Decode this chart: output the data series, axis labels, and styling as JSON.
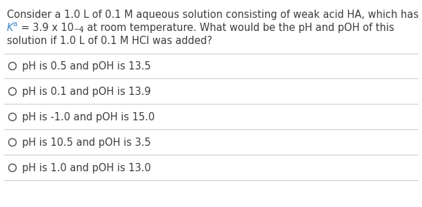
{
  "background_color": "#ffffff",
  "text_color": "#3d3d3d",
  "ka_color": "#3d85c8",
  "circle_color": "#555555",
  "line_color": "#cccccc",
  "font_size": 10.5,
  "small_font_size": 7.5,
  "option_font_size": 10.5,
  "q_line1": "Consider a 1.0 L of 0.1 M aqueous solution consisting of weak acid HA, which has",
  "q_line2_before_ka": "",
  "q_line2_ka": "K",
  "q_line2_ka_sub": "a",
  "q_line2_after_ka": " = 3.9 x 10",
  "q_line2_sup": "-4",
  "q_line2_rest": ", at room temperature. What would be the pH and pOH of this",
  "q_line3": "solution if 1.0 L of 0.1 M HCl was added?",
  "options": [
    "pH is 0.5 and pOH is 13.5",
    "pH is 0.1 and pOH is 13.9",
    "pH is -1.0 and pOH is 15.0",
    "pH is 10.5 and pOH is 3.5",
    "pH is 1.0 and pOH is 13.0"
  ],
  "figwidth": 6.12,
  "figheight": 3.01,
  "dpi": 100
}
